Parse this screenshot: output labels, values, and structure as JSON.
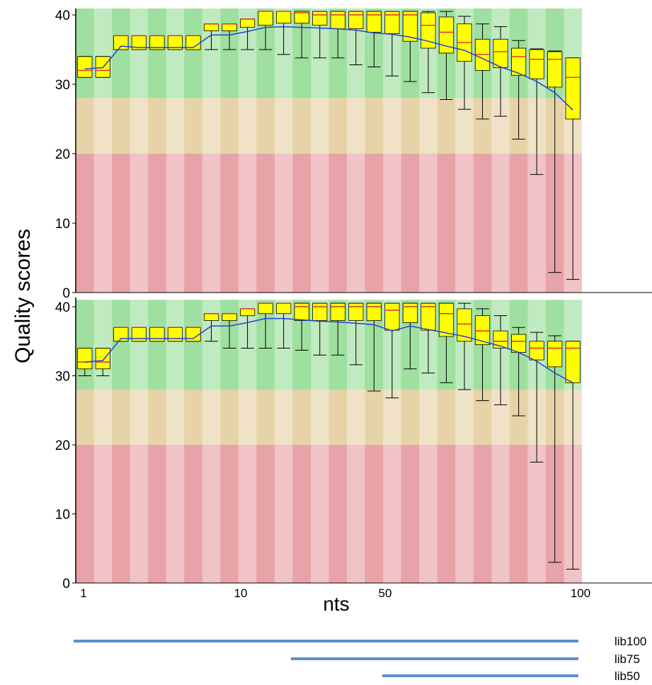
{
  "chart_data": {
    "type": "box",
    "ylabel": "Quality scores",
    "xlabel": "nts",
    "ylim": [
      0,
      41
    ],
    "yticks": [
      0,
      10,
      20,
      30,
      40
    ],
    "xtick_labels": [
      "1",
      "10",
      "50",
      "100"
    ],
    "zones": [
      {
        "from": 28,
        "to": 41,
        "color": "#9fdf9f"
      },
      {
        "from": 20,
        "to": 28,
        "color": "#e6d3a8"
      },
      {
        "from": 0,
        "to": 20,
        "color": "#e8a3a8"
      }
    ],
    "colors": {
      "box": "#ffff00",
      "median": "#e03030",
      "mean_line": "#2a3fd6",
      "whisker": "#000000",
      "lib_line": "#5b8fd0"
    },
    "panels": [
      {
        "name": "top",
        "boxes": [
          {
            "q1": 31,
            "med": 32,
            "q3": 34,
            "lo": 31,
            "hi": 34
          },
          {
            "q1": 31,
            "med": 32,
            "q3": 34,
            "lo": 31,
            "hi": 34
          },
          {
            "q1": 35,
            "med": 37,
            "q3": 37,
            "lo": 35,
            "hi": 37
          },
          {
            "q1": 35,
            "med": 37,
            "q3": 37,
            "lo": 35,
            "hi": 37
          },
          {
            "q1": 35,
            "med": 37,
            "q3": 37,
            "lo": 35,
            "hi": 37
          },
          {
            "q1": 35,
            "med": 37,
            "q3": 37,
            "lo": 35,
            "hi": 37
          },
          {
            "q1": 35,
            "med": 37,
            "q3": 37,
            "lo": 35,
            "hi": 37
          },
          {
            "q1": 37.7,
            "med": 38.7,
            "q3": 38.7,
            "lo": 35,
            "hi": 38.7
          },
          {
            "q1": 37.7,
            "med": 38.7,
            "q3": 38.7,
            "lo": 35,
            "hi": 38.7
          },
          {
            "q1": 38.2,
            "med": 39.4,
            "q3": 39.4,
            "lo": 35,
            "hi": 39.4
          },
          {
            "q1": 38.5,
            "med": 40.5,
            "q3": 40.5,
            "lo": 35,
            "hi": 40.5
          },
          {
            "q1": 38.8,
            "med": 40.5,
            "q3": 40.5,
            "lo": 34.3,
            "hi": 40.5
          },
          {
            "q1": 38.8,
            "med": 40.3,
            "q3": 40.5,
            "lo": 33.8,
            "hi": 40.5
          },
          {
            "q1": 38.5,
            "med": 40,
            "q3": 40.5,
            "lo": 33.8,
            "hi": 40.5
          },
          {
            "q1": 38,
            "med": 40,
            "q3": 40.5,
            "lo": 33.8,
            "hi": 40.5
          },
          {
            "q1": 38,
            "med": 40,
            "q3": 40.5,
            "lo": 32.8,
            "hi": 40.5
          },
          {
            "q1": 37.5,
            "med": 40,
            "q3": 40.5,
            "lo": 32.5,
            "hi": 40.5
          },
          {
            "q1": 37.3,
            "med": 40,
            "q3": 40.5,
            "lo": 31.2,
            "hi": 40.5
          },
          {
            "q1": 36.2,
            "med": 40,
            "q3": 40.5,
            "lo": 30.4,
            "hi": 40.5
          },
          {
            "q1": 35.2,
            "med": 38.5,
            "q3": 40.3,
            "lo": 28.8,
            "hi": 40.5
          },
          {
            "q1": 34.5,
            "med": 37.5,
            "q3": 39.7,
            "lo": 27.8,
            "hi": 40.5
          },
          {
            "q1": 33.3,
            "med": 36,
            "q3": 38.7,
            "lo": 26.4,
            "hi": 39.8
          },
          {
            "q1": 32,
            "med": 34.3,
            "q3": 36.5,
            "lo": 25,
            "hi": 38.7
          },
          {
            "q1": 32.4,
            "med": 34.7,
            "q3": 36.5,
            "lo": 25.4,
            "hi": 38.3
          },
          {
            "q1": 31.3,
            "med": 34,
            "q3": 35.2,
            "lo": 22.1,
            "hi": 36.3
          },
          {
            "q1": 30.8,
            "med": 33.6,
            "q3": 35,
            "lo": 17,
            "hi": 35.1
          },
          {
            "q1": 29.6,
            "med": 33.6,
            "q3": 34.7,
            "lo": 2.9,
            "hi": 34.8
          },
          {
            "q1": 25,
            "med": 31,
            "q3": 33.8,
            "lo": 1.9,
            "hi": 33.8
          }
        ],
        "mean": [
          32.2,
          32.4,
          35.5,
          35.3,
          35.3,
          35.3,
          35.3,
          37.1,
          37.1,
          37.6,
          38.2,
          38.3,
          38.2,
          38.1,
          38,
          37.8,
          37.4,
          37.2,
          36.8,
          36.2,
          35.5,
          34.9,
          33.7,
          32.5,
          31.6,
          30.4,
          28.8,
          26.3
        ]
      },
      {
        "name": "bottom",
        "boxes": [
          {
            "q1": 31,
            "med": 32,
            "q3": 34,
            "lo": 30,
            "hi": 34
          },
          {
            "q1": 31,
            "med": 32,
            "q3": 34,
            "lo": 30,
            "hi": 34
          },
          {
            "q1": 35,
            "med": 37,
            "q3": 37,
            "lo": 35,
            "hi": 37
          },
          {
            "q1": 35,
            "med": 37,
            "q3": 37,
            "lo": 35,
            "hi": 37
          },
          {
            "q1": 35,
            "med": 37,
            "q3": 37,
            "lo": 35,
            "hi": 37
          },
          {
            "q1": 35,
            "med": 37,
            "q3": 37,
            "lo": 35,
            "hi": 37
          },
          {
            "q1": 35,
            "med": 37,
            "q3": 37,
            "lo": 35,
            "hi": 37
          },
          {
            "q1": 38,
            "med": 39,
            "q3": 39,
            "lo": 35,
            "hi": 39
          },
          {
            "q1": 38,
            "med": 39,
            "q3": 39,
            "lo": 34,
            "hi": 39
          },
          {
            "q1": 38.7,
            "med": 39.7,
            "q3": 39.7,
            "lo": 34,
            "hi": 39.7
          },
          {
            "q1": 39,
            "med": 40.5,
            "q3": 40.5,
            "lo": 34,
            "hi": 40.5
          },
          {
            "q1": 39,
            "med": 40.5,
            "q3": 40.5,
            "lo": 34,
            "hi": 40.5
          },
          {
            "q1": 38,
            "med": 40,
            "q3": 40.5,
            "lo": 33.7,
            "hi": 40.5
          },
          {
            "q1": 38,
            "med": 40,
            "q3": 40.5,
            "lo": 33,
            "hi": 40.5
          },
          {
            "q1": 38,
            "med": 40,
            "q3": 40.5,
            "lo": 33,
            "hi": 40.5
          },
          {
            "q1": 38,
            "med": 40,
            "q3": 40.5,
            "lo": 31.6,
            "hi": 40.5
          },
          {
            "q1": 38,
            "med": 40,
            "q3": 40.5,
            "lo": 27.8,
            "hi": 40.5
          },
          {
            "q1": 36.6,
            "med": 39.5,
            "q3": 40.5,
            "lo": 26.8,
            "hi": 40.5
          },
          {
            "q1": 37.7,
            "med": 40,
            "q3": 40.5,
            "lo": 31,
            "hi": 40.5
          },
          {
            "q1": 36.6,
            "med": 40,
            "q3": 40.5,
            "lo": 30.4,
            "hi": 40.5
          },
          {
            "q1": 35.7,
            "med": 39,
            "q3": 40.5,
            "lo": 29,
            "hi": 40.5
          },
          {
            "q1": 35,
            "med": 37.5,
            "q3": 39.7,
            "lo": 28,
            "hi": 40.5
          },
          {
            "q1": 34.5,
            "med": 36.5,
            "q3": 38.7,
            "lo": 26.4,
            "hi": 39.7
          },
          {
            "q1": 34,
            "med": 35,
            "q3": 36.5,
            "lo": 25.8,
            "hi": 38.7
          },
          {
            "q1": 33.4,
            "med": 35,
            "q3": 36,
            "lo": 24.2,
            "hi": 37
          },
          {
            "q1": 32.3,
            "med": 34,
            "q3": 35,
            "lo": 17.5,
            "hi": 36.3
          },
          {
            "q1": 31.3,
            "med": 34,
            "q3": 35,
            "lo": 3,
            "hi": 35.8
          },
          {
            "q1": 29,
            "med": 34,
            "q3": 35,
            "lo": 2,
            "hi": 35
          }
        ],
        "mean": [
          32,
          32.2,
          35.4,
          35.4,
          35.4,
          35.4,
          35.4,
          37.2,
          37.2,
          37.7,
          38.3,
          38.3,
          38.1,
          37.9,
          37.8,
          37.6,
          37.4,
          36.5,
          37.2,
          36.7,
          36.2,
          35.7,
          35,
          34.3,
          33.4,
          32.1,
          30.4,
          29
        ]
      }
    ],
    "libraries": [
      {
        "name": "lib100",
        "start_nt": 1,
        "end_nt": 100
      },
      {
        "name": "lib75",
        "start_nt": 26,
        "end_nt": 100
      },
      {
        "name": "lib50",
        "start_nt": 51,
        "end_nt": 100
      }
    ]
  }
}
